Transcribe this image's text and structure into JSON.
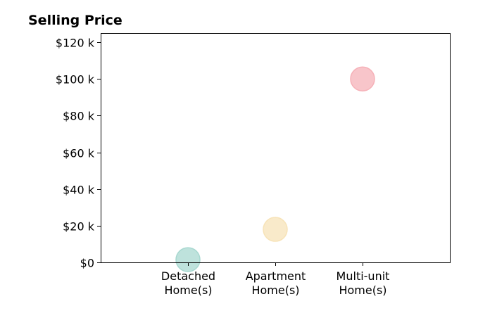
{
  "chart_data": {
    "type": "scatter",
    "title": "Selling Price",
    "xlabel": "",
    "ylabel": "",
    "categories": [
      "Detached\nHome(s)",
      "Apartment\nHome(s)",
      "Multi-unit\nHome(s)"
    ],
    "y_ticks": [
      0,
      20000,
      40000,
      60000,
      80000,
      100000,
      120000
    ],
    "y_tick_labels": [
      "$0",
      "$20 k",
      "$40 k",
      "$60 k",
      "$80 k",
      "$100 k",
      "$120 k"
    ],
    "ylim": [
      0,
      125000
    ],
    "xlim": [
      -1,
      3
    ],
    "grid": false,
    "legend": "none",
    "series": [
      {
        "values": [
          1500,
          18000,
          100000
        ],
        "colors": [
          "#a8d8d0",
          "#f7e3b8",
          "#f6b1b8"
        ]
      }
    ]
  }
}
